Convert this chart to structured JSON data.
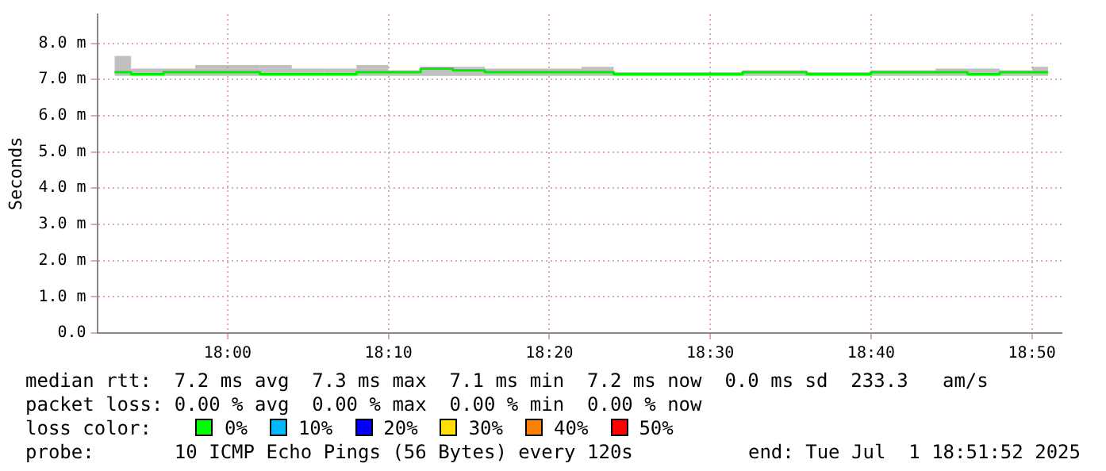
{
  "chart_data": {
    "type": "step",
    "ylabel": "Seconds",
    "x": [
      17.883,
      17.917,
      17.95,
      17.983,
      18.017,
      18.05,
      18.083,
      18.117,
      18.15,
      18.183,
      18.217,
      18.25,
      18.283,
      18.317,
      18.35,
      18.383,
      18.417,
      18.45,
      18.483,
      18.517,
      18.55,
      18.583,
      18.617,
      18.65,
      18.683,
      18.717,
      18.75,
      18.783,
      18.817,
      18.85
    ],
    "series": [
      {
        "color": "#00ee00",
        "values": [
          7.2,
          7.15,
          7.2,
          7.2,
          7.2,
          7.15,
          7.15,
          7.15,
          7.2,
          7.2,
          7.3,
          7.25,
          7.2,
          7.2,
          7.2,
          7.2,
          7.15,
          7.15,
          7.15,
          7.15,
          7.2,
          7.2,
          7.15,
          7.15,
          7.2,
          7.2,
          7.2,
          7.15,
          7.2,
          7.2
        ],
        "lower": [
          7.1,
          7.1,
          7.1,
          7.1,
          7.1,
          7.1,
          7.1,
          7.1,
          7.1,
          7.1,
          7.1,
          7.1,
          7.1,
          7.1,
          7.1,
          7.1,
          7.1,
          7.1,
          7.1,
          7.1,
          7.1,
          7.1,
          7.1,
          7.1,
          7.1,
          7.1,
          7.1,
          7.1,
          7.1,
          7.1
        ],
        "upper": [
          7.65,
          7.3,
          7.3,
          7.4,
          7.4,
          7.4,
          7.3,
          7.3,
          7.4,
          7.25,
          7.35,
          7.35,
          7.3,
          7.3,
          7.3,
          7.35,
          7.2,
          7.2,
          7.2,
          7.2,
          7.25,
          7.25,
          7.2,
          7.2,
          7.25,
          7.25,
          7.3,
          7.3,
          7.25,
          7.35
        ]
      }
    ],
    "xlim": [
      17.865,
      18.864
    ],
    "xticks": [
      {
        "value": 18,
        "label": "18:00"
      },
      {
        "value": 18.1667,
        "label": "18:10"
      },
      {
        "value": 18.3333,
        "label": "18:20"
      },
      {
        "value": 18.5,
        "label": "18:30"
      },
      {
        "value": 18.6667,
        "label": "18:40"
      },
      {
        "value": 18.8333,
        "label": "18:50"
      }
    ],
    "ylim": [
      0,
      8.8
    ],
    "yticks": [
      {
        "value": 0,
        "label": "0.0"
      },
      {
        "value": 1,
        "label": "1.0 m"
      },
      {
        "value": 2,
        "label": "2.0 m"
      },
      {
        "value": 3,
        "label": "3.0 m"
      },
      {
        "value": 4,
        "label": "4.0 m"
      },
      {
        "value": 5,
        "label": "5.0 m"
      },
      {
        "value": 6,
        "label": "6.0 m"
      },
      {
        "value": 7,
        "label": "7.0 m"
      },
      {
        "value": 8,
        "label": "8.0 m"
      }
    ],
    "grid": true,
    "legend": false,
    "marker": "none",
    "line_style": "solid",
    "annotations": [
      "median rtt:  7.2 ms avg  7.3 ms max  7.1 ms min  7.2 ms now  0.0 ms sd  233.3   am/s",
      "packet loss: 0.00 % avg  0.00 % max  0.00 % min  0.00 % now",
      "loss color:",
      "0%",
      "10%",
      "20%",
      "30%",
      "40%",
      "50%",
      "probe:       10 ICMP Echo Pings (56 Bytes) every 120s",
      "end: Tue Jul  1 18:51:52 2025"
    ]
  }
}
